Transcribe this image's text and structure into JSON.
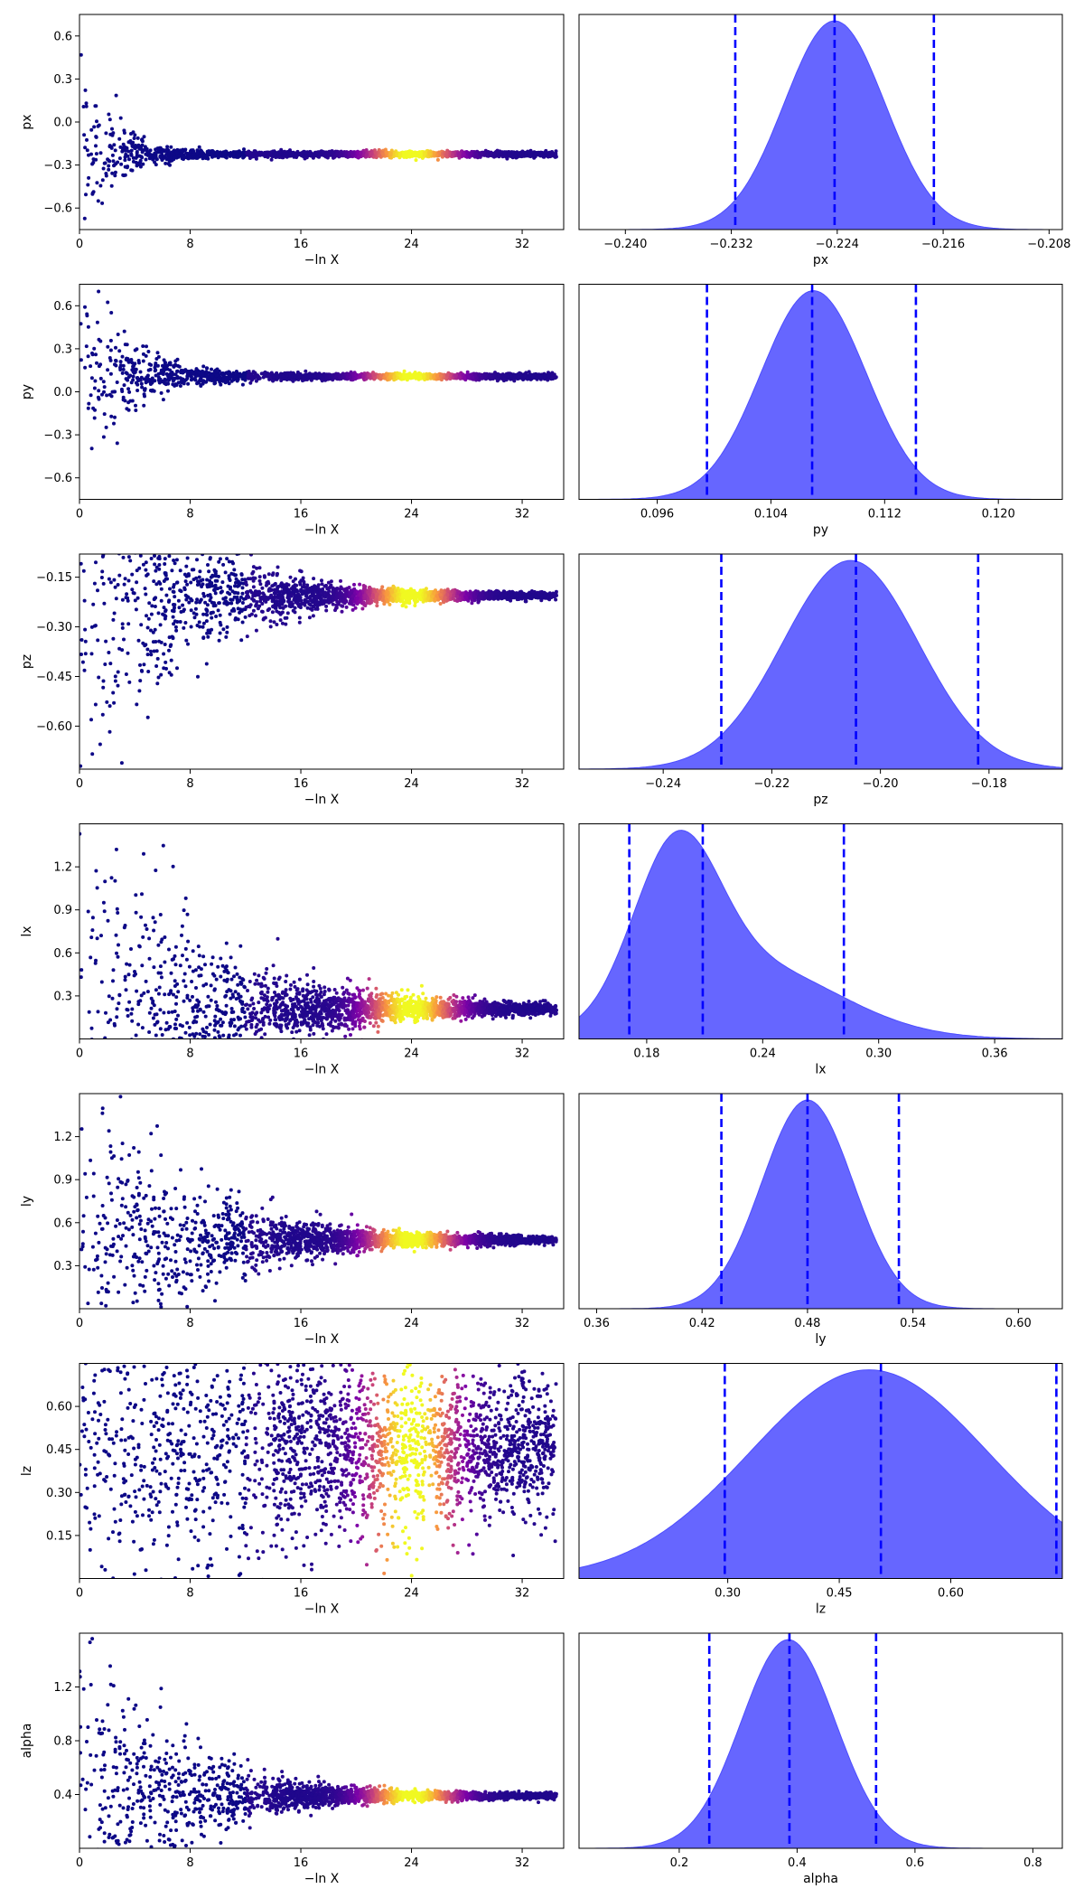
{
  "chart_data": [
    {
      "type": "scatter",
      "panel": "trace",
      "xlabel": "−ln X",
      "ylabel": "px",
      "xlim": [
        0,
        35
      ],
      "ylim": [
        -0.75,
        0.75
      ],
      "xticks": [
        0,
        8,
        16,
        24,
        32
      ],
      "yticks": [
        0.6,
        0.3,
        0.0,
        -0.3,
        -0.6
      ],
      "ytick_labels": [
        "0.6",
        "0.3",
        "0.0",
        "−0.3",
        "−0.6"
      ],
      "converged_value": -0.224,
      "early_spread": 0.75,
      "convergence_scale": 2.0,
      "colormap": [
        "#0d0887",
        "#7e03a8",
        "#cc4778",
        "#f89540",
        "#f0f921"
      ],
      "peak_color_x": 24
    },
    {
      "type": "area",
      "panel": "marginal",
      "xlabel": "px",
      "xlim": [
        -0.2435,
        -0.207
      ],
      "xticks": [
        -0.24,
        -0.232,
        -0.224,
        -0.216,
        -0.208
      ],
      "xtick_labels": [
        "−0.240",
        "−0.232",
        "−0.224",
        "−0.216",
        "−0.208"
      ],
      "quantiles": [
        -0.2317,
        -0.2242,
        -0.2167
      ],
      "density_center": -0.2242,
      "density_sigma": 0.0038,
      "fill_color": "#6666ff",
      "quantile_line_color": "#0000ff"
    },
    {
      "type": "scatter",
      "panel": "trace",
      "xlabel": "−ln X",
      "ylabel": "py",
      "xlim": [
        0,
        35
      ],
      "ylim": [
        -0.75,
        0.75
      ],
      "xticks": [
        0,
        8,
        16,
        24,
        32
      ],
      "yticks": [
        0.6,
        0.3,
        0.0,
        -0.3,
        -0.6
      ],
      "ytick_labels": [
        "0.6",
        "0.3",
        "0.0",
        "−0.3",
        "−0.6"
      ],
      "converged_value": 0.107,
      "early_spread": 0.75,
      "convergence_scale": 3.0,
      "peak_color_x": 24
    },
    {
      "type": "area",
      "panel": "marginal",
      "xlabel": "py",
      "xlim": [
        0.0905,
        0.1245
      ],
      "xticks": [
        0.096,
        0.104,
        0.112,
        0.12
      ],
      "xtick_labels": [
        "0.096",
        "0.104",
        "0.112",
        "0.120"
      ],
      "quantiles": [
        0.0995,
        0.1069,
        0.1142
      ],
      "density_center": 0.107,
      "density_sigma": 0.0037
    },
    {
      "type": "scatter",
      "panel": "trace",
      "xlabel": "−ln X",
      "ylabel": "pz",
      "xlim": [
        0,
        35
      ],
      "ylim": [
        -0.73,
        -0.08
      ],
      "xticks": [
        0,
        8,
        16,
        24,
        32
      ],
      "yticks": [
        -0.15,
        -0.3,
        -0.45,
        -0.6
      ],
      "ytick_labels": [
        "−0.15",
        "−0.30",
        "−0.45",
        "−0.60"
      ],
      "converged_value": -0.206,
      "early_spread": 0.6,
      "convergence_scale": 6.0,
      "peak_color_x": 24
    },
    {
      "type": "area",
      "panel": "marginal",
      "xlabel": "pz",
      "xlim": [
        -0.2555,
        -0.1665
      ],
      "xticks": [
        -0.24,
        -0.22,
        -0.2,
        -0.18
      ],
      "xtick_labels": [
        "−0.24",
        "−0.22",
        "−0.20",
        "−0.18"
      ],
      "quantiles": [
        -0.2293,
        -0.2045,
        -0.182
      ],
      "density_center": -0.2055,
      "density_sigma": 0.0125
    },
    {
      "type": "scatter",
      "panel": "trace",
      "xlabel": "−ln X",
      "ylabel": "lx",
      "xlim": [
        0,
        35
      ],
      "ylim": [
        0.0,
        1.5
      ],
      "xticks": [
        0,
        8,
        16,
        24,
        32
      ],
      "yticks": [
        1.2,
        0.9,
        0.6,
        0.3
      ],
      "ytick_labels": [
        "1.2",
        "0.9",
        "0.6",
        "0.3"
      ],
      "converged_value": 0.21,
      "early_spread": 1.3,
      "convergence_scale": 8.0,
      "peak_color_x": 24
    },
    {
      "type": "area",
      "panel": "marginal",
      "xlabel": "lx",
      "xlim": [
        0.145,
        0.395
      ],
      "xticks": [
        0.18,
        0.24,
        0.3,
        0.36
      ],
      "xtick_labels": [
        "0.18",
        "0.24",
        "0.30",
        "0.36"
      ],
      "quantiles": [
        0.171,
        0.209,
        0.282
      ],
      "density_center": 0.195,
      "density_sigma": 0.03
    },
    {
      "type": "scatter",
      "panel": "trace",
      "xlabel": "−ln X",
      "ylabel": "ly",
      "xlim": [
        0,
        35
      ],
      "ylim": [
        0.0,
        1.5
      ],
      "xticks": [
        0,
        8,
        16,
        24,
        32
      ],
      "yticks": [
        1.2,
        0.9,
        0.6,
        0.3
      ],
      "ytick_labels": [
        "1.2",
        "0.9",
        "0.6",
        "0.3"
      ],
      "converged_value": 0.48,
      "early_spread": 1.1,
      "convergence_scale": 7.0,
      "peak_color_x": 24
    },
    {
      "type": "area",
      "panel": "marginal",
      "xlabel": "ly",
      "xlim": [
        0.35,
        0.625
      ],
      "xticks": [
        0.36,
        0.42,
        0.48,
        0.54,
        0.6
      ],
      "xtick_labels": [
        "0.36",
        "0.42",
        "0.48",
        "0.54",
        "0.60"
      ],
      "quantiles": [
        0.431,
        0.48,
        0.532
      ],
      "density_center": 0.48,
      "density_sigma": 0.026
    },
    {
      "type": "scatter",
      "panel": "trace",
      "xlabel": "−ln X",
      "ylabel": "lz",
      "xlim": [
        0,
        35
      ],
      "ylim": [
        0.0,
        0.75
      ],
      "xticks": [
        0,
        8,
        16,
        24,
        32
      ],
      "yticks": [
        0.6,
        0.45,
        0.3,
        0.15
      ],
      "ytick_labels": [
        "0.60",
        "0.45",
        "0.30",
        "0.15"
      ],
      "converged_value": 0.45,
      "early_spread": 0.5,
      "convergence_scale": 40.0,
      "peak_color_x": 24
    },
    {
      "type": "area",
      "panel": "marginal",
      "xlabel": "lz",
      "xlim": [
        0.1,
        0.75
      ],
      "xticks": [
        0.3,
        0.45,
        0.6
      ],
      "xtick_labels": [
        "0.30",
        "0.45",
        "0.60"
      ],
      "quantiles": [
        0.296,
        0.506,
        0.742
      ],
      "density_center": 0.49,
      "density_sigma": 0.16
    },
    {
      "type": "scatter",
      "panel": "trace",
      "xlabel": "−ln X",
      "ylabel": "alpha",
      "xlim": [
        0,
        35
      ],
      "ylim": [
        0.0,
        1.6
      ],
      "xticks": [
        0,
        8,
        16,
        24,
        32
      ],
      "yticks": [
        1.2,
        0.8,
        0.4
      ],
      "ytick_labels": [
        "1.2",
        "0.8",
        "0.4"
      ],
      "converged_value": 0.39,
      "early_spread": 1.2,
      "convergence_scale": 6.0,
      "peak_color_x": 24
    },
    {
      "type": "area",
      "panel": "marginal",
      "xlabel": "alpha",
      "xlim": [
        0.03,
        0.85
      ],
      "xticks": [
        0.2,
        0.4,
        0.6,
        0.8
      ],
      "xtick_labels": [
        "0.2",
        "0.4",
        "0.6",
        "0.8"
      ],
      "quantiles": [
        0.251,
        0.387,
        0.534
      ],
      "density_center": 0.385,
      "density_sigma": 0.08
    }
  ]
}
